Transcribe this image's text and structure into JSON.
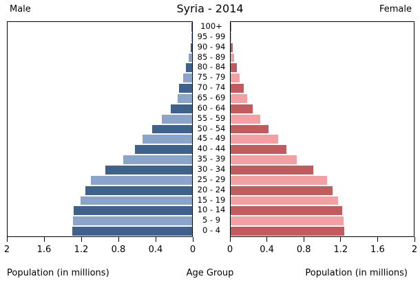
{
  "title": "Syria - 2014",
  "header": {
    "left": "Male",
    "right": "Female"
  },
  "axis": {
    "left_label": "Population (in millions)",
    "center_label": "Age Group",
    "right_label": "Population (in millions)",
    "left_ticks": [
      "2",
      "1.6",
      "1.2",
      "0.8",
      "0.4",
      "0"
    ],
    "right_ticks": [
      "0",
      "0.4",
      "0.8",
      "1.2",
      "1.6",
      "2"
    ]
  },
  "chart_data": {
    "type": "bar",
    "subtype": "population_pyramid",
    "title": "Syria - 2014",
    "unit": "millions of people",
    "xlim": [
      0,
      2
    ],
    "x_tick_step": 0.4,
    "grid": false,
    "categories_top_to_bottom": [
      "100+",
      "95 - 99",
      "90 - 94",
      "85 - 89",
      "80 - 84",
      "75 - 79",
      "70 - 74",
      "65 - 69",
      "60 - 64",
      "55 - 59",
      "50 - 54",
      "45 - 49",
      "40 - 44",
      "35 - 39",
      "30 - 34",
      "25 - 29",
      "20 - 24",
      "15 - 19",
      "10 - 14",
      "5 - 9",
      "0 - 4"
    ],
    "series": [
      {
        "name": "Male",
        "side": "left",
        "values": [
          0.002,
          0.004,
          0.013,
          0.035,
          0.07,
          0.1,
          0.14,
          0.16,
          0.23,
          0.33,
          0.43,
          0.54,
          0.62,
          0.75,
          0.94,
          1.1,
          1.16,
          1.21,
          1.28,
          1.29,
          1.3
        ]
      },
      {
        "name": "Female",
        "side": "right",
        "values": [
          0.002,
          0.005,
          0.02,
          0.04,
          0.07,
          0.1,
          0.14,
          0.18,
          0.24,
          0.32,
          0.41,
          0.52,
          0.61,
          0.72,
          0.9,
          1.05,
          1.11,
          1.17,
          1.22,
          1.23,
          1.24
        ]
      }
    ],
    "colors": {
      "male_dark": "#3f628c",
      "male_light": "#8aa5c9",
      "female_dark": "#c15b5e",
      "female_light": "#f2a0a4",
      "axis_line": "#000000",
      "background": "#ffffff"
    }
  }
}
